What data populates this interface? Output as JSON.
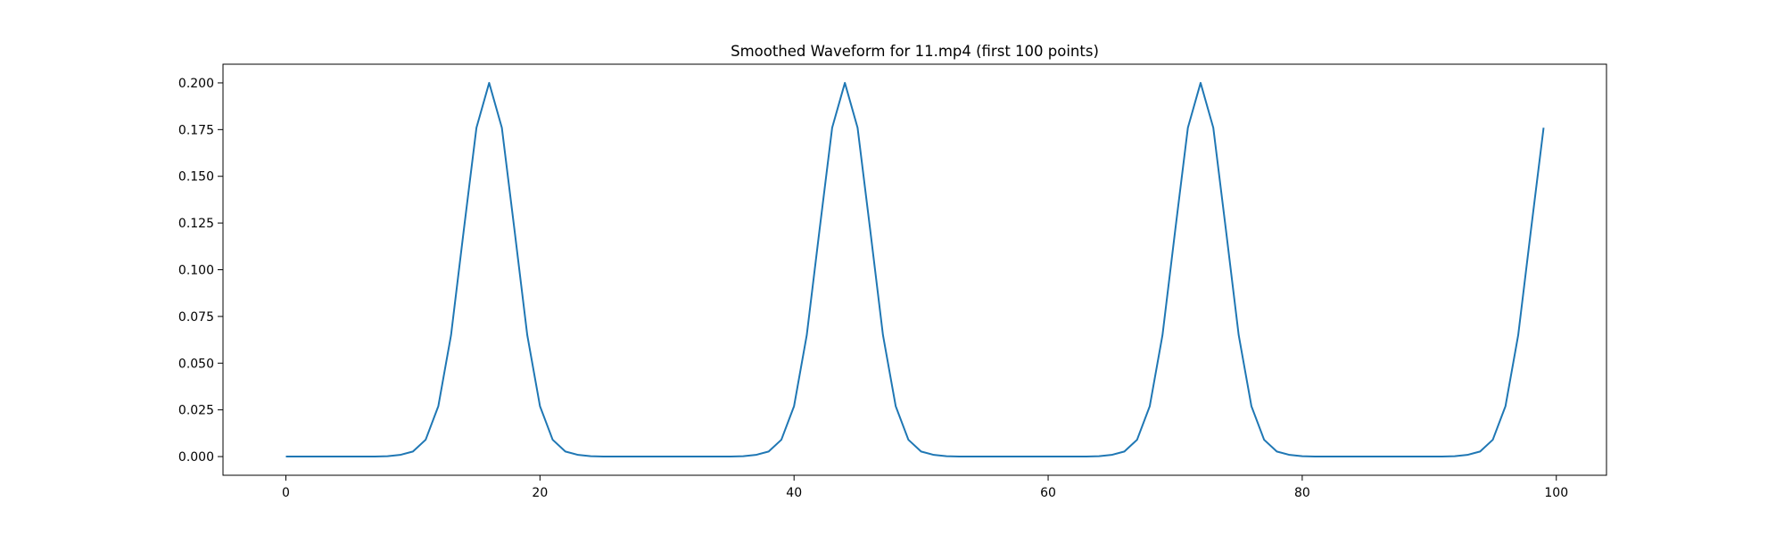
{
  "chart_data": {
    "type": "line",
    "title": "Smoothed Waveform for 11.mp4 (first 100 points)",
    "xlabel": "",
    "ylabel": "",
    "xlim": [
      -4.95,
      103.95
    ],
    "ylim": [
      -0.01,
      0.21
    ],
    "x_ticks": [
      0,
      20,
      40,
      60,
      80,
      100
    ],
    "x_tick_labels": [
      "0",
      "20",
      "40",
      "60",
      "80",
      "100"
    ],
    "y_ticks": [
      0.0,
      0.025,
      0.05,
      0.075,
      0.1,
      0.125,
      0.15,
      0.175,
      0.2
    ],
    "y_tick_labels": [
      "0.000",
      "0.025",
      "0.050",
      "0.075",
      "0.100",
      "0.125",
      "0.150",
      "0.175",
      "0.200"
    ],
    "grid": false,
    "series": [
      {
        "color": "#1f77b4",
        "x": [
          0,
          1,
          2,
          3,
          4,
          5,
          6,
          7,
          8,
          9,
          10,
          11,
          12,
          13,
          14,
          15,
          16,
          17,
          18,
          19,
          20,
          21,
          22,
          23,
          24,
          25,
          26,
          27,
          28,
          29,
          30,
          31,
          32,
          33,
          34,
          35,
          36,
          37,
          38,
          39,
          40,
          41,
          42,
          43,
          44,
          45,
          46,
          47,
          48,
          49,
          50,
          51,
          52,
          53,
          54,
          55,
          56,
          57,
          58,
          59,
          60,
          61,
          62,
          63,
          64,
          65,
          66,
          67,
          68,
          69,
          70,
          71,
          72,
          73,
          74,
          75,
          76,
          77,
          78,
          79,
          80,
          81,
          82,
          83,
          84,
          85,
          86,
          87,
          88,
          89,
          90,
          91,
          92,
          93,
          94,
          95,
          96,
          97,
          98,
          99
        ],
        "values": [
          0.0,
          0.0,
          0.0,
          0.0,
          0.0,
          0.0,
          0.0,
          0.0,
          0.0002,
          0.0009,
          0.0027,
          0.009,
          0.027,
          0.065,
          0.121,
          0.176,
          0.2,
          0.176,
          0.121,
          0.065,
          0.027,
          0.009,
          0.0027,
          0.0009,
          0.0002,
          0.0,
          0.0,
          0.0,
          0.0,
          0.0,
          0.0,
          0.0,
          0.0,
          0.0,
          0.0,
          0.0,
          0.0002,
          0.0009,
          0.0027,
          0.009,
          0.027,
          0.065,
          0.121,
          0.176,
          0.2,
          0.176,
          0.121,
          0.065,
          0.027,
          0.009,
          0.0027,
          0.0009,
          0.0002,
          0.0,
          0.0,
          0.0,
          0.0,
          0.0,
          0.0,
          0.0,
          0.0,
          0.0,
          0.0,
          0.0,
          0.0002,
          0.0009,
          0.0027,
          0.009,
          0.027,
          0.065,
          0.121,
          0.176,
          0.2,
          0.176,
          0.121,
          0.065,
          0.027,
          0.009,
          0.0027,
          0.0009,
          0.0002,
          0.0,
          0.0,
          0.0,
          0.0,
          0.0,
          0.0,
          0.0,
          0.0,
          0.0,
          0.0,
          0.0,
          0.0002,
          0.0009,
          0.0027,
          0.009,
          0.027,
          0.065,
          0.121,
          0.176
        ]
      }
    ]
  }
}
